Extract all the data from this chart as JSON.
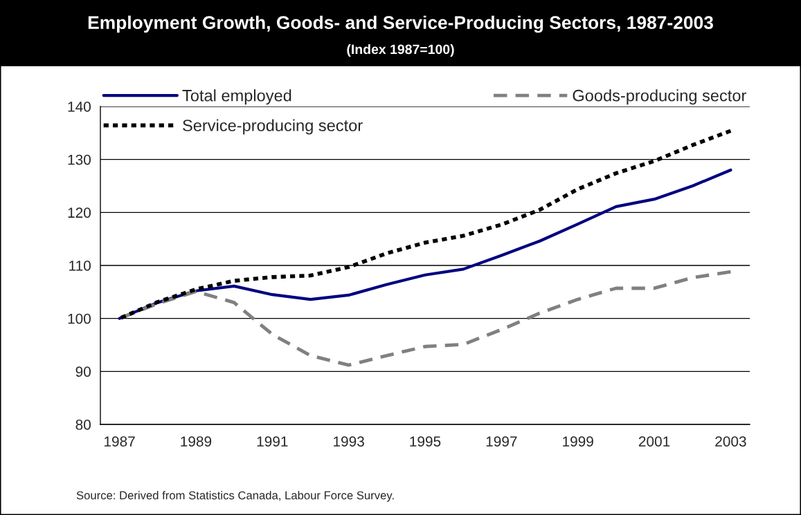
{
  "chart_data": {
    "type": "line",
    "title": "Employment Growth, Goods- and Service-Producing Sectors, 1987-2003",
    "subtitle": "(Index 1987=100)",
    "categories": [
      "1987",
      null,
      "1989",
      null,
      "1991",
      null,
      "1993",
      null,
      "1995",
      null,
      "1997",
      null,
      "1999",
      null,
      "2001",
      null,
      "2003"
    ],
    "series": [
      {
        "name": "Total employed",
        "color": "#000080",
        "line_style": "solid",
        "values": [
          100,
          103.0,
          105.2,
          106.1,
          104.5,
          103.6,
          104.4,
          106.4,
          108.2,
          109.3,
          111.9,
          114.6,
          117.8,
          121.1,
          122.5,
          125.0,
          128.0
        ]
      },
      {
        "name": "Goods-producing sector",
        "color": "#808080",
        "line_style": "dashed",
        "values": [
          100,
          102.8,
          105.1,
          103.0,
          97.0,
          93.0,
          91.2,
          93.0,
          94.7,
          95.1,
          97.9,
          101.0,
          103.6,
          105.7,
          105.7,
          107.7,
          108.8
        ]
      },
      {
        "name": "Service-producing sector",
        "color": "#000000",
        "line_style": "dotted",
        "values": [
          100,
          103.1,
          105.5,
          107.1,
          107.8,
          108.1,
          109.7,
          112.3,
          114.3,
          115.6,
          117.7,
          120.5,
          124.4,
          127.4,
          129.7,
          132.7,
          135.4
        ]
      }
    ],
    "ylim": [
      80,
      140
    ],
    "yticks": [
      80,
      90,
      100,
      110,
      120,
      130,
      140
    ],
    "grid": "y",
    "legend": "top",
    "annotations": [
      "Source: Derived from Statistics Canada, Labour Force Survey."
    ]
  }
}
